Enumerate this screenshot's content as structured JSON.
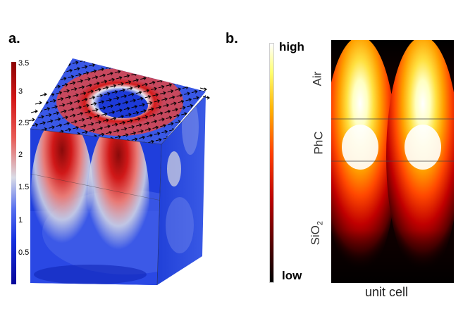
{
  "panel_a": {
    "label": "a.",
    "colorbar_ticks": [
      "3.5",
      "3",
      "2.5",
      "2",
      "1.5",
      "1",
      "0.5"
    ],
    "colorbar_range": [
      0,
      3.6
    ],
    "colormap": [
      "#07079a",
      "#1530e0",
      "#5870ee",
      "#d9dbe6",
      "#e85a55",
      "#d41818",
      "#8c0202"
    ]
  },
  "panel_b": {
    "label": "b.",
    "colorbar_high": "high",
    "colorbar_low": "low",
    "region_air": "Air",
    "region_phc": "PhC",
    "region_sio2_main": "SiO",
    "region_sio2_sub": "2",
    "xlabel": "unit cell",
    "colormap": [
      "#000000",
      "#4a0000",
      "#b80000",
      "#ff4000",
      "#ffb000",
      "#ffff70",
      "#ffffff"
    ]
  }
}
